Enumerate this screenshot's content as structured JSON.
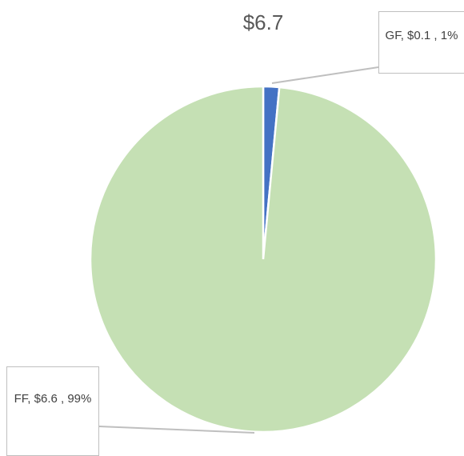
{
  "chart_data": {
    "type": "pie",
    "title": "$6.7",
    "categories": [
      "GF",
      "FF"
    ],
    "values": [
      0.1,
      6.6
    ],
    "value_labels": [
      "GF,  $0.1 , 1%",
      "FF,  $6.6 , 99%"
    ],
    "colors": [
      "#4472c4",
      "#c5e0b4"
    ]
  }
}
